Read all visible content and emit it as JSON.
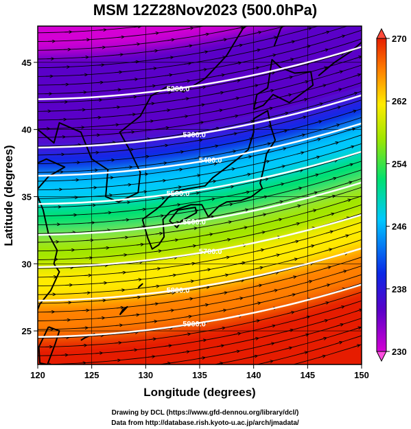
{
  "title": "MSM 12Z28Nov2023 (500.0hPa)",
  "xlabel": "Longitude (degrees)",
  "ylabel": "Latitude  (degrees)",
  "footer_line1": "Drawing by DCL (https://www.gfd-dennou.org/library/dcl/)",
  "footer_line2": "Data from http://database.rish.kyoto-u.ac.jp/arch/jmadata/",
  "chart_data": {
    "type": "heatmap",
    "title": "MSM 12Z28Nov2023 (500.0hPa)",
    "xlabel": "Longitude (degrees)",
    "ylabel": "Latitude  (degrees)",
    "xlim": [
      120,
      150
    ],
    "ylim": [
      22.5,
      47.7
    ],
    "x_ticks": [
      "120",
      "125",
      "130",
      "135",
      "140",
      "145",
      "150"
    ],
    "y_ticks": [
      "25",
      "30",
      "35",
      "40",
      "45"
    ],
    "colorbar": {
      "min": 230,
      "max": 270,
      "ticks": [
        "230",
        "238",
        "246",
        "254",
        "262",
        "270"
      ],
      "colors": [
        "#d400d4",
        "#5a00c8",
        "#0a28e6",
        "#00c8ff",
        "#00e070",
        "#a0e600",
        "#ffeb00",
        "#ff7f00",
        "#e61e00"
      ]
    },
    "height_contours": [
      {
        "label": "5200.0",
        "lat_at_135E": 43.3
      },
      {
        "label": "5300.0",
        "lat_at_135E": 39.7
      },
      {
        "label": "5400.0",
        "lat_at_135E": 37.6
      },
      {
        "label": "5500.0",
        "lat_at_135E": 35.5
      },
      {
        "label": "5600.0",
        "lat_at_135E": 33.2
      },
      {
        "label": "5700.0",
        "lat_at_135E": 30.8
      },
      {
        "label": "5800.0",
        "lat_at_135E": 28.3
      },
      {
        "label": "5900.0",
        "lat_at_135E": 25.6
      }
    ],
    "contour_color": "#ffffff",
    "wind_arrow_color": "#000000",
    "coastline_color": "#000000",
    "grid": true
  }
}
